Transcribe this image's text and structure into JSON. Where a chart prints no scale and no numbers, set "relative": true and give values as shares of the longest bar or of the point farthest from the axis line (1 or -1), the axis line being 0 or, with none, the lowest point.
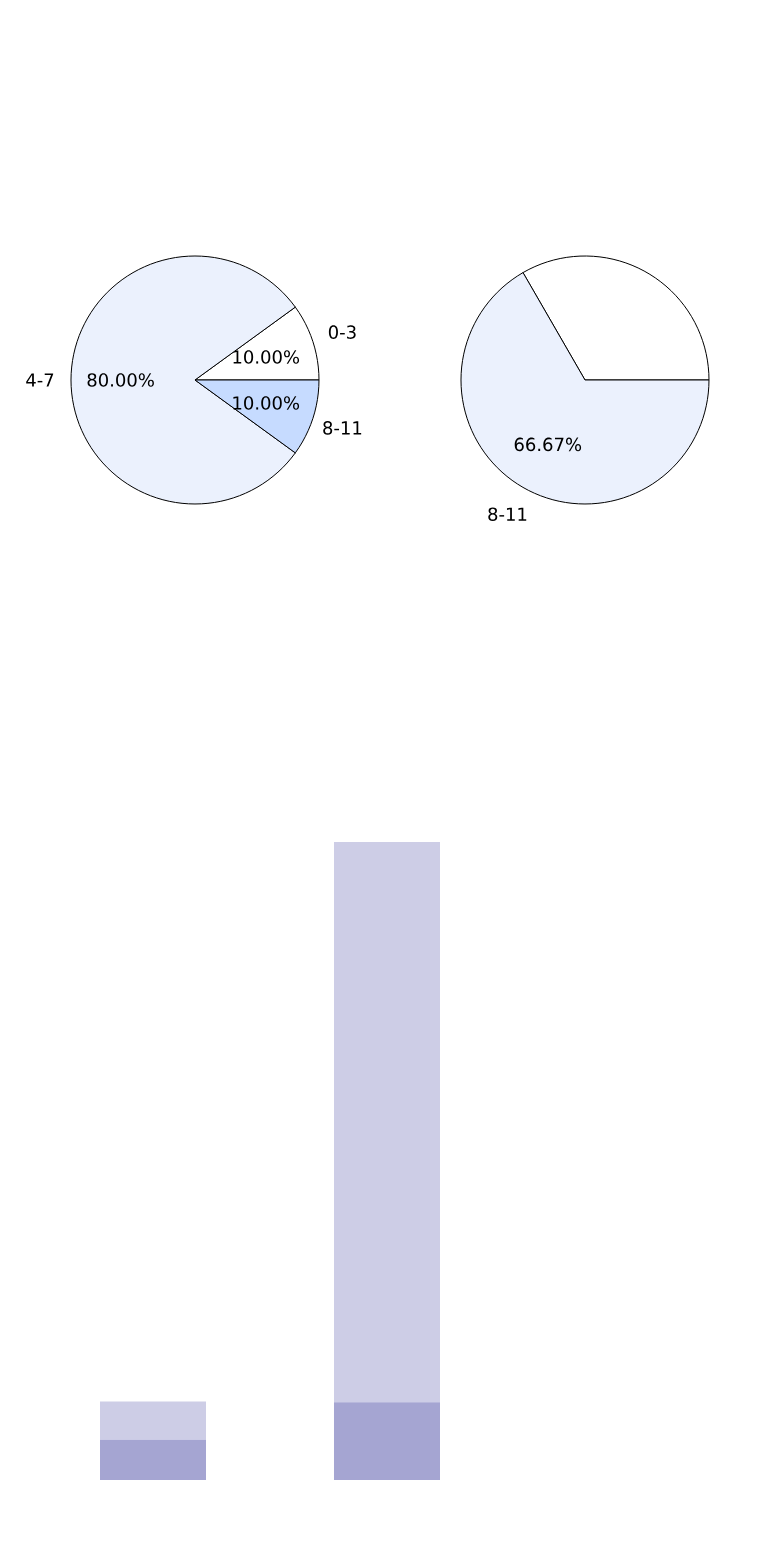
{
  "chart_data": [
    {
      "type": "pie",
      "categories": [
        "0-3",
        "4-7",
        "8-11"
      ],
      "values": [
        10,
        80,
        10
      ],
      "colors": [
        "#ffffff",
        "#ebf1fd",
        "#c6dbff"
      ],
      "value_labels": [
        "10.00%",
        "80.00%",
        "10.00%"
      ]
    },
    {
      "type": "pie",
      "categories": [
        null,
        "8-11"
      ],
      "values": [
        33.33,
        66.67
      ],
      "colors": [
        "#ffffff",
        "#ebf1fd"
      ],
      "value_labels": [
        null,
        "66.67%"
      ]
    },
    {
      "type": "bar",
      "stacked": true,
      "relative": true,
      "categories": [
        null,
        null
      ],
      "series": [
        {
          "color": "#a5a5d2",
          "values": [
            0.063,
            0.122
          ]
        },
        {
          "color": "#cdcde6",
          "values": [
            0.06,
            0.878
          ]
        }
      ]
    }
  ]
}
